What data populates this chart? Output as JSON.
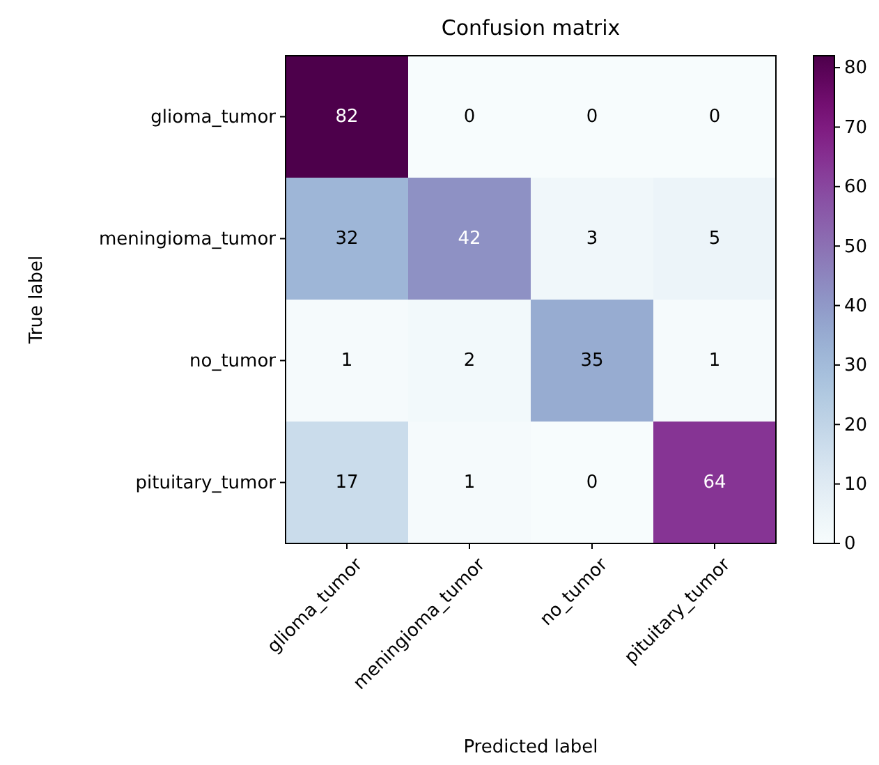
{
  "chart_data": {
    "type": "heatmap",
    "title": "Confusion matrix",
    "xlabel": "Predicted label",
    "ylabel": "True label",
    "categories": [
      "glioma_tumor",
      "meningioma_tumor",
      "no_tumor",
      "pituitary_tumor"
    ],
    "y_categories": [
      "glioma_tumor",
      "meningioma_tumor",
      "no_tumor",
      "pituitary_tumor"
    ],
    "cells": [
      [
        82,
        0,
        0,
        0
      ],
      [
        32,
        42,
        3,
        5
      ],
      [
        1,
        2,
        35,
        1
      ],
      [
        17,
        1,
        0,
        64
      ]
    ],
    "data_labels": true,
    "clim": [
      0,
      82
    ],
    "cticks": [
      0,
      10,
      20,
      30,
      40,
      50,
      60,
      70,
      80
    ]
  }
}
